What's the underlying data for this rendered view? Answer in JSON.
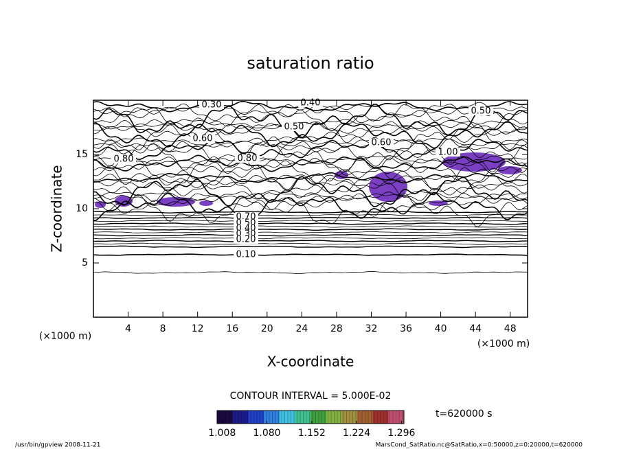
{
  "chart_data": {
    "type": "contour",
    "title": "saturation ratio",
    "x_label": "X-coordinate",
    "y_label": "Z-coordinate",
    "x_unit": "(×1000 m)",
    "xlim": [
      0,
      50
    ],
    "xticks": [
      4,
      8,
      12,
      16,
      20,
      24,
      28,
      32,
      36,
      40,
      44,
      48
    ],
    "ylim": [
      0,
      20
    ],
    "yticks": [
      5,
      10,
      15
    ],
    "contour_interval": "CONTOUR INTERVAL = 5.000E-02",
    "contour_labels": [
      "0.30",
      "0.40",
      "0.50",
      "0.50",
      "0.60",
      "0.60",
      "0.80",
      "0.80",
      "1.00",
      "0.70",
      "0.50",
      "0.40",
      "0.30",
      "0.20",
      "0.10"
    ],
    "shade_color": "#7b3fc4",
    "colorbar": {
      "lim": [
        1.0,
        1.3
      ],
      "ticks": [
        1.008,
        {
          "value": 1.08,
          "label": "1.080"
        },
        1.152,
        1.224,
        1.296
      ],
      "colors": [
        "#1a0a40",
        "#1b1b8a",
        "#2040c8",
        "#3080e0",
        "#40c0e0",
        "#40c090",
        "#40a040",
        "#80b040",
        "#a09040",
        "#a06030",
        "#a03030",
        "#c05070"
      ]
    },
    "time_label": "t=620000 s"
  },
  "footer": {
    "left": "/usr/bin/gpview   2008-11-21",
    "right": "MarsCond_SatRatio.nc@SatRatio,x=0:50000,z=0:20000,t=620000"
  }
}
